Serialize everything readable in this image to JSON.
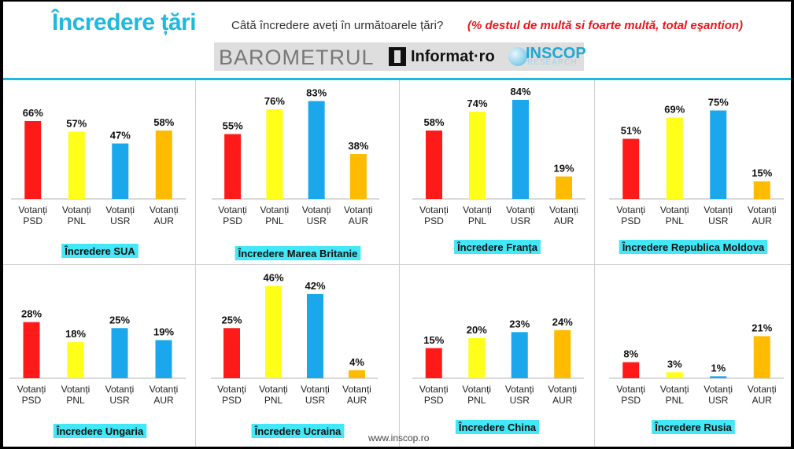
{
  "header": {
    "title": "Încredere țări",
    "question": "Câtă încredere aveți în următoarele țări?",
    "note": "(%  destul de multă si foarte multă,  total eşantion)"
  },
  "logos": {
    "barometer": "BAROMETRUL",
    "informat": "Informat·ro",
    "inscop": "INSCOP",
    "inscop_sub": "RESEARCH"
  },
  "footer": "www.inscop.ro",
  "colors": {
    "PSD": "#ff1a1a",
    "PNL": "#ffff1a",
    "USR": "#1aa7ec",
    "AUR": "#ffbb00",
    "accent": "#1fb8de",
    "label_bg": "#42e8f7"
  },
  "chart_data": [
    {
      "type": "bar",
      "title": "Încredere SUA",
      "categories": [
        "Votanți PSD",
        "Votanți PNL",
        "Votanți USR",
        "Votanți AUR"
      ],
      "values": [
        66,
        57,
        47,
        58
      ],
      "colors": [
        "#ff1a1a",
        "#ffff1a",
        "#1aa7ec",
        "#ffbb00"
      ],
      "ylim": [
        0,
        100
      ]
    },
    {
      "type": "bar",
      "title": "Încredere Marea Britanie",
      "categories": [
        "Votanți PSD",
        "Votanți PNL",
        "Votanți USR",
        "Votanți AUR"
      ],
      "values": [
        55,
        76,
        83,
        38
      ],
      "colors": [
        "#ff1a1a",
        "#ffff1a",
        "#1aa7ec",
        "#ffbb00"
      ],
      "ylim": [
        0,
        100
      ]
    },
    {
      "type": "bar",
      "title": "Încredere Franța",
      "categories": [
        "Votanți PSD",
        "Votanți PNL",
        "Votanți USR",
        "Votanți AUR"
      ],
      "values": [
        58,
        74,
        84,
        19
      ],
      "colors": [
        "#ff1a1a",
        "#ffff1a",
        "#1aa7ec",
        "#ffbb00"
      ],
      "ylim": [
        0,
        100
      ]
    },
    {
      "type": "bar",
      "title": "Încredere Republica Moldova",
      "categories": [
        "Votanți PSD",
        "Votanți PNL",
        "Votanți USR",
        "Votanți AUR"
      ],
      "values": [
        51,
        69,
        75,
        15
      ],
      "colors": [
        "#ff1a1a",
        "#ffff1a",
        "#1aa7ec",
        "#ffbb00"
      ],
      "ylim": [
        0,
        100
      ]
    },
    {
      "type": "bar",
      "title": "Încredere Ungaria",
      "categories": [
        "Votanți PSD",
        "Votanți PNL",
        "Votanți USR",
        "Votanți AUR"
      ],
      "values": [
        28,
        18,
        25,
        19
      ],
      "colors": [
        "#ff1a1a",
        "#ffff1a",
        "#1aa7ec",
        "#1aa7ec"
      ],
      "ylim": [
        0,
        100
      ]
    },
    {
      "type": "bar",
      "title": "Încredere Ucraina",
      "categories": [
        "Votanți PSD",
        "Votanți PNL",
        "Votanți USR",
        "Votanți AUR"
      ],
      "values": [
        25,
        46,
        42,
        4
      ],
      "colors": [
        "#ff1a1a",
        "#ffff1a",
        "#1aa7ec",
        "#ffbb00"
      ],
      "ylim": [
        0,
        100
      ]
    },
    {
      "type": "bar",
      "title": "Încredere China",
      "categories": [
        "Votanți PSD",
        "Votanți PNL",
        "Votanți USR",
        "Votanți AUR"
      ],
      "values": [
        15,
        20,
        23,
        24
      ],
      "colors": [
        "#ff1a1a",
        "#ffff1a",
        "#1aa7ec",
        "#ffbb00"
      ],
      "ylim": [
        0,
        100
      ]
    },
    {
      "type": "bar",
      "title": "Încredere Rusia",
      "categories": [
        "Votanți PSD",
        "Votanți PNL",
        "Votanți USR",
        "Votanți AUR"
      ],
      "values": [
        8,
        3,
        1,
        21
      ],
      "colors": [
        "#ff1a1a",
        "#ffff1a",
        "#1aa7ec",
        "#ffbb00"
      ],
      "ylim": [
        0,
        100
      ]
    }
  ]
}
